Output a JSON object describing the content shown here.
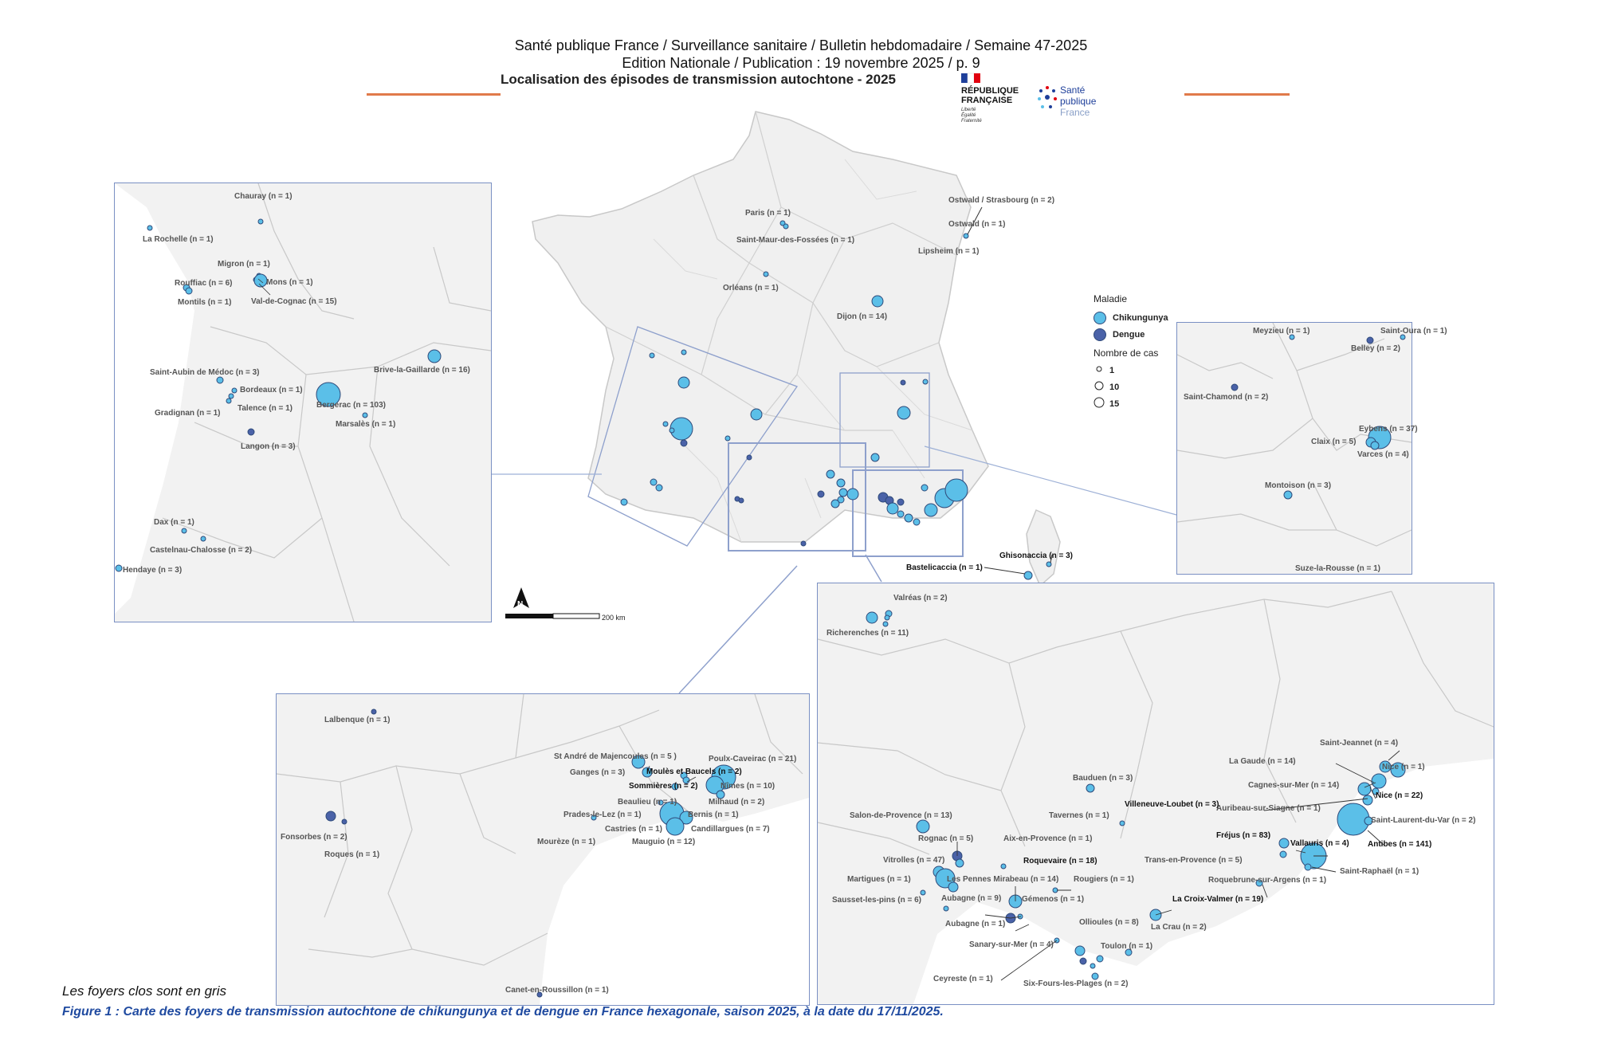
{
  "header": {
    "line1": "Santé publique France / Surveillance sanitaire / Bulletin hebdomadaire / Semaine 47-2025",
    "line2": "Edition Nationale / Publication : 19 novembre 2025 / p. 9",
    "title": "Localisation des épisodes de transmission autochtone - 2025"
  },
  "logos": {
    "rf_line1": "RÉPUBLIQUE",
    "rf_line2": "FRANÇAISE",
    "rf_motto1": "Liberté",
    "rf_motto2": "Égalité",
    "rf_motto3": "Fraternité",
    "spf_line1": "Santé",
    "spf_line2": "publique",
    "spf_line3": "France"
  },
  "legend": {
    "title_disease": "Maladie",
    "chik": "Chikungunya",
    "dengue": "Dengue",
    "title_cases": "Nombre de cas",
    "size1": "1",
    "size10": "10",
    "size15": "15",
    "colors": {
      "chik": "#5bbfe8",
      "dengue": "#4a62a8"
    }
  },
  "scale": {
    "label": "200 km",
    "north": "N"
  },
  "panels": {
    "france": [
      "Ostwald / Strasbourg (n = 2)",
      "Ostwald (n = 1)",
      "Lipsheim (n = 1)",
      "Paris (n = 1)",
      "Saint-Maur-des-Fossées (n = 1)",
      "Orléans (n = 1)",
      "Dijon (n = 14)",
      "Bastelicaccia (n = 1)",
      "Ghisonaccia (n = 3)"
    ],
    "sud_ouest": [
      "Chauray (n = 1)",
      "La Rochelle (n = 1)",
      "Migron (n = 1)",
      "Rouffiac (n = 6)",
      "Mons (n = 1)",
      "Montils (n = 1)",
      "Val-de-Cognac (n = 15)",
      "Brive-la-Gaillarde (n = 16)",
      "Saint-Aubin de Médoc (n = 3)",
      "Bordeaux (n = 1)",
      "Talence (n = 1)",
      "Bergerac (n = 103)",
      "Gradignan (n = 1)",
      "Marsalès (n = 1)",
      "Langon (n = 3)",
      "Dax (n = 1)",
      "Castelnau-Chalosse (n = 2)",
      "Hendaye (n = 3)"
    ],
    "rhone_alpes": [
      "Meyzieu (n = 1)",
      "Saint-Oura (n = 1)",
      "Belley (n = 2)",
      "Saint-Chamond (n = 2)",
      "Eybens (n = 37)",
      "Claix (n = 5)",
      "Varces (n = 4)",
      "Montoison (n = 3)",
      "Suze-la-Rousse (n = 1)"
    ],
    "occitanie": [
      "Lalbenque (n = 1)",
      "St André de Majencoules (n = 5 )",
      "Poulx-Caveirac (n = 21)",
      "Ganges (n = 3)",
      "Moulès et Baucels (n = 2)",
      "Sommières (n = 2)",
      "Nîmes (n = 10)",
      "Beaulieu (n = 1)",
      "Milhaud (n = 2)",
      "Prades-le-Lez (n = 1)",
      "Bernis (n = 1)",
      "Castries (n = 1)",
      "Candillargues (n = 7)",
      "Fonsorbes (n = 2)",
      "Mourèze (n = 1)",
      "Mauguio (n = 12)",
      "Roques (n = 1)",
      "Canet-en-Roussillon (n = 1)"
    ],
    "paca": [
      "Valréas (n = 2)",
      "Richerenches (n = 11)",
      "Saint-Jeannet (n = 4)",
      "La Gaude (n = 14)",
      "Nice (n = 1)",
      "Bauduen (n = 3)",
      "Cagnes-sur-Mer (n = 14)",
      "Nice (n = 22)",
      "Villeneuve-Loubet (n = 3)",
      "Auribeau-sur-Siagne (n = 1)",
      "Salon-de-Provence (n = 13)",
      "Tavernes (n = 1)",
      "Saint-Laurent-du-Var (n = 2)",
      "Rognac (n = 5)",
      "Aix-en-Provence (n = 1)",
      "Fréjus (n = 83)",
      "Antibes (n = 141)",
      "Vallauris (n = 4)",
      "Vitrolles (n = 47)",
      "Roquevaire (n = 18)",
      "Trans-en-Provence (n = 5)",
      "Saint-Raphaël (n = 1)",
      "Martigues (n = 1)",
      "Les Pennes Mirabeau (n = 14)",
      "Rougiers (n = 1)",
      "Roquebrune-sur-Argens (n = 1)",
      "Sausset-les-pins (n = 6)",
      "Aubagne (n = 9)",
      "Gémenos (n = 1)",
      "La Croix-Valmer (n = 19)",
      "Aubagne (n = 1)",
      "Ollioules (n = 8)",
      "La Crau (n = 2)",
      "Sanary-sur-Mer (n = 4)",
      "Toulon (n = 1)",
      "Ceyreste (n = 1)",
      "Six-Fours-les-Plages (n = 2)"
    ]
  },
  "footer": {
    "note": "Les foyers clos sont en gris",
    "caption": "Figure 1 : Carte des foyers de transmission autochtone de chikungunya et de dengue en France hexagonale, saison 2025, à la date du 17/11/2025."
  }
}
